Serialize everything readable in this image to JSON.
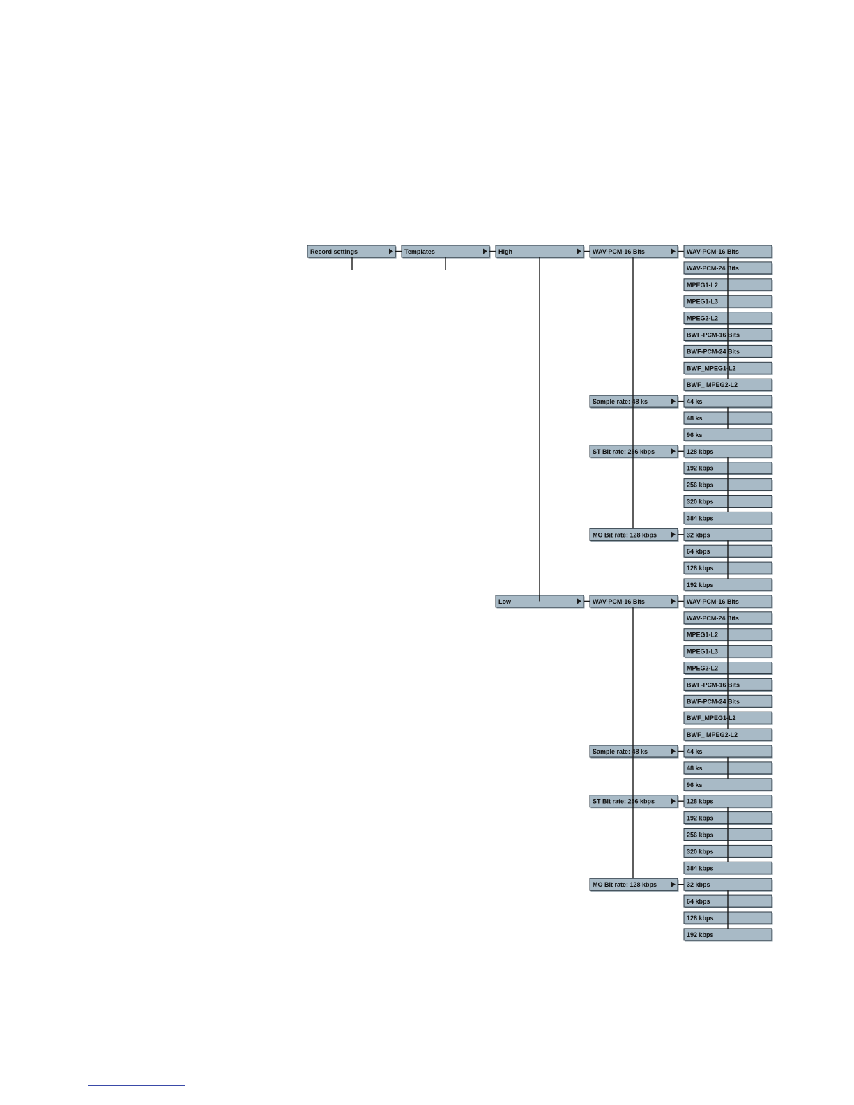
{
  "diagram": {
    "root": "Record settings",
    "level1": "Templates",
    "templates": [
      {
        "name": "High",
        "menus": [
          {
            "label": "WAV-PCM-16 Bits",
            "options": [
              "WAV-PCM-16 Bits",
              "WAV-PCM-24 Bits",
              "MPEG1-L2",
              "MPEG1-L3",
              "MPEG2-L2",
              "BWF-PCM-16 Bits",
              "BWF-PCM-24 Bits",
              "BWF_MPEG1-L2",
              "BWF_ MPEG2-L2"
            ]
          },
          {
            "label": "Sample rate: 48 ks",
            "options": [
              "44 ks",
              "48 ks",
              "96 ks"
            ]
          },
          {
            "label": "ST Bit  rate: 256 kbps",
            "options": [
              "128 kbps",
              "192 kbps",
              "256 kbps",
              "320 kbps",
              "384 kbps"
            ]
          },
          {
            "label": "MO Bit  rate: 128 kbps",
            "options": [
              "32 kbps",
              "64 kbps",
              "128 kbps",
              "192 kbps"
            ]
          }
        ]
      },
      {
        "name": "Low",
        "menus": [
          {
            "label": "WAV-PCM-16 Bits",
            "options": [
              "WAV-PCM-16 Bits",
              "WAV-PCM-24 Bits",
              "MPEG1-L2",
              "MPEG1-L3",
              "MPEG2-L2",
              "BWF-PCM-16 Bits",
              "BWF-PCM-24 Bits",
              "BWF_MPEG1-L2",
              "BWF_ MPEG2-L2"
            ]
          },
          {
            "label": "Sample rate: 48 ks",
            "options": [
              "44 ks",
              "48 ks",
              "96 ks"
            ]
          },
          {
            "label": "ST Bit  rate: 256 kbps",
            "options": [
              "128 kbps",
              "192 kbps",
              "256 kbps",
              "320 kbps",
              "384 kbps"
            ]
          },
          {
            "label": "MO Bit  rate: 128 kbps",
            "options": [
              "32 kbps",
              "64 kbps",
              "128 kbps",
              "192 kbps"
            ]
          }
        ]
      }
    ]
  },
  "colors": {
    "box_fill": "#a8bac6",
    "box_border": "#2f3b44",
    "connector": "#1a1a1a"
  }
}
